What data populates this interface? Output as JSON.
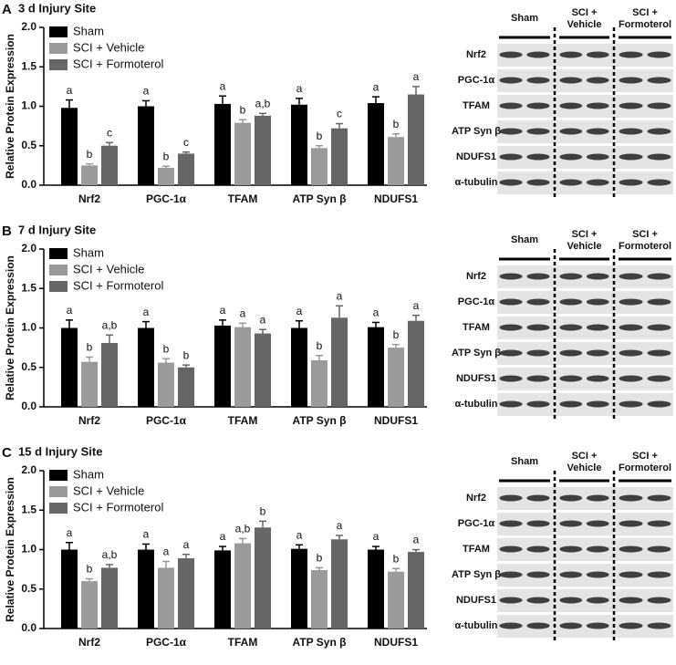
{
  "chart_data": [
    {
      "type": "bar",
      "panel": "A",
      "title": "3 d Injury Site",
      "ylabel": "Relative Protein Expression",
      "categories": [
        "Nrf2",
        "PGC-1α",
        "TFAM",
        "ATP Syn β",
        "NDUFS1"
      ],
      "series": [
        {
          "name": "Sham",
          "color": "#000000",
          "values": [
            0.98,
            1.0,
            1.03,
            1.02,
            1.04
          ],
          "errors": [
            0.1,
            0.07,
            0.1,
            0.08,
            0.08
          ],
          "letters": [
            "a",
            "a",
            "a",
            "a",
            "a"
          ]
        },
        {
          "name": "SCI + Vehicle",
          "color": "#9a9a9a",
          "values": [
            0.25,
            0.22,
            0.79,
            0.47,
            0.61
          ],
          "errors": [
            0.02,
            0.02,
            0.04,
            0.03,
            0.04
          ],
          "letters": [
            "b",
            "b",
            "b",
            "b",
            "b"
          ]
        },
        {
          "name": "SCI + Formoterol",
          "color": "#666666",
          "values": [
            0.5,
            0.4,
            0.88,
            0.72,
            1.15
          ],
          "errors": [
            0.04,
            0.02,
            0.03,
            0.06,
            0.1
          ],
          "letters": [
            "c",
            "c",
            "a,b",
            "c",
            "a"
          ]
        }
      ],
      "ylim": [
        0,
        2.0
      ],
      "yticks": [
        {
          "value": 0,
          "label": "0.0"
        },
        0.5,
        {
          "value": 1,
          "label": "1.0"
        },
        1.5,
        {
          "value": 2,
          "label": "2.0"
        }
      ],
      "blot": {
        "groups": [
          [
            "Sham"
          ],
          [
            "SCI +",
            "Vehicle"
          ],
          [
            "SCI +",
            "Formoterol"
          ]
        ],
        "rows": [
          "Nrf2",
          "PGC-1α",
          "TFAM",
          "ATP Syn β",
          "NDUFS1",
          "α-tubulin"
        ]
      }
    },
    {
      "type": "bar",
      "panel": "B",
      "title": "7 d Injury Site",
      "ylabel": "Relative Protein Expression",
      "categories": [
        "Nrf2",
        "PGC-1α",
        "TFAM",
        "ATP Syn β",
        "NDUFS1"
      ],
      "series": [
        {
          "name": "Sham",
          "color": "#000000",
          "values": [
            1.0,
            1.0,
            1.03,
            1.0,
            1.01
          ],
          "errors": [
            0.1,
            0.08,
            0.07,
            0.09,
            0.06
          ],
          "letters": [
            "a",
            "a",
            "a",
            "a",
            "a"
          ]
        },
        {
          "name": "SCI + Vehicle",
          "color": "#9a9a9a",
          "values": [
            0.57,
            0.56,
            1.01,
            0.59,
            0.75
          ],
          "errors": [
            0.06,
            0.05,
            0.05,
            0.06,
            0.04
          ],
          "letters": [
            "b",
            "b",
            "a",
            "b",
            "b"
          ]
        },
        {
          "name": "SCI + Formoterol",
          "color": "#666666",
          "values": [
            0.81,
            0.5,
            0.93,
            1.13,
            1.09
          ],
          "errors": [
            0.1,
            0.03,
            0.05,
            0.15,
            0.07
          ],
          "letters": [
            "a,b",
            "b",
            "a",
            "a",
            "a"
          ]
        }
      ],
      "ylim": [
        0,
        2.0
      ],
      "yticks": [
        {
          "value": 0,
          "label": "0.0"
        },
        0.5,
        {
          "value": 1,
          "label": "1.0"
        },
        1.5,
        {
          "value": 2,
          "label": "2.0"
        }
      ],
      "blot": {
        "groups": [
          [
            "Sham"
          ],
          [
            "SCI +",
            "Vehicle"
          ],
          [
            "SCI +",
            "Formoterol"
          ]
        ],
        "rows": [
          "Nrf2",
          "PGC-1α",
          "TFAM",
          "ATP Syn β",
          "NDUFS1",
          "α-tubulin"
        ]
      }
    },
    {
      "type": "bar",
      "panel": "C",
      "title": "15 d Injury Site",
      "ylabel": "Relative Protein Expression",
      "categories": [
        "Nrf2",
        "PGC-1α",
        "TFAM",
        "ATP Syn β",
        "NDUFS1"
      ],
      "series": [
        {
          "name": "Sham",
          "color": "#000000",
          "values": [
            1.0,
            1.0,
            0.99,
            1.01,
            1.0
          ],
          "errors": [
            0.09,
            0.07,
            0.05,
            0.05,
            0.04
          ],
          "letters": [
            "a",
            "a",
            "a",
            "a",
            "a"
          ]
        },
        {
          "name": "SCI + Vehicle",
          "color": "#9a9a9a",
          "values": [
            0.6,
            0.77,
            1.08,
            0.74,
            0.72
          ],
          "errors": [
            0.03,
            0.08,
            0.06,
            0.03,
            0.04
          ],
          "letters": [
            "b",
            "a",
            "a,b",
            "b",
            "b"
          ]
        },
        {
          "name": "SCI + Formoterol",
          "color": "#666666",
          "values": [
            0.77,
            0.89,
            1.28,
            1.13,
            0.97
          ],
          "errors": [
            0.04,
            0.05,
            0.08,
            0.05,
            0.03
          ],
          "letters": [
            "a,b",
            "a",
            "b",
            "a",
            "a"
          ]
        }
      ],
      "ylim": [
        0,
        2.0
      ],
      "yticks": [
        {
          "value": 0,
          "label": "0.0"
        },
        0.5,
        {
          "value": 1,
          "label": "1.0"
        },
        1.5,
        {
          "value": 2,
          "label": "2.0"
        }
      ],
      "blot": {
        "groups": [
          [
            "Sham"
          ],
          [
            "SCI +",
            "Vehicle"
          ],
          [
            "SCI +",
            "Formoterol"
          ]
        ],
        "rows": [
          "Nrf2",
          "PGC-1α",
          "TFAM",
          "ATP Syn β",
          "NDUFS1",
          "α-tubulin"
        ]
      }
    }
  ]
}
